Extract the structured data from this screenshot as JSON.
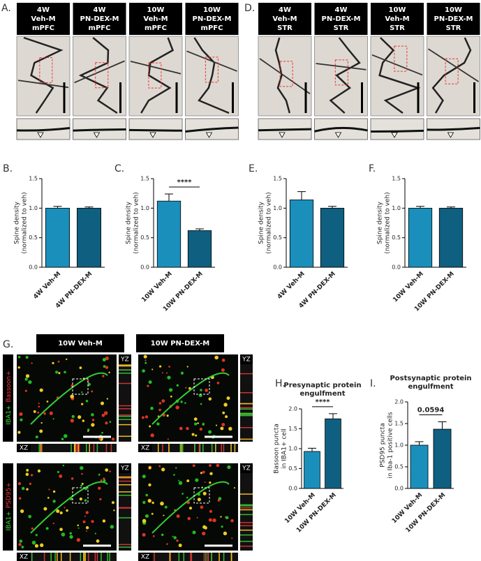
{
  "figure": {
    "panel_a": {
      "label": "A.",
      "headers": [
        [
          "4W",
          "Veh-M",
          "mPFC"
        ],
        [
          "4W",
          "PN-DEX-M",
          "mPFC"
        ],
        [
          "10W",
          "Veh-M",
          "mPFC"
        ],
        [
          "10W",
          "PN-DEX-M",
          "mPFC"
        ]
      ]
    },
    "panel_d": {
      "label": "D.",
      "headers": [
        [
          "4W",
          "Veh-M",
          "STR"
        ],
        [
          "4W",
          "PN-DEX-M",
          "STR"
        ],
        [
          "10W",
          "Veh-M",
          "STR"
        ],
        [
          "10W",
          "PN-DEX-M",
          "STR"
        ]
      ]
    },
    "panel_g": {
      "label": "G.",
      "headers": [
        "10W Veh-M",
        "10W PN-DEX-M"
      ],
      "rows": [
        [
          "IBA1+",
          "Bassoon+"
        ],
        [
          "IBA1+",
          "PSD95+"
        ]
      ],
      "yz": "YZ",
      "xz": "XZ"
    }
  },
  "chart_data": [
    {
      "type": "bar",
      "panel_label": "B.",
      "y_label": [
        "Spine density",
        "(normalized to veh)"
      ],
      "categories": [
        "4W Veh-M",
        "4W PN-DEX-M"
      ],
      "values": [
        1.0,
        1.0
      ],
      "errors": [
        0.03,
        0.02
      ],
      "colors": [
        "#1b8fbb",
        "#0f5f80"
      ],
      "ylim": [
        0,
        1.5
      ],
      "yticks": [
        {
          "value": 0,
          "label": "0.0"
        },
        0.5,
        {
          "value": 1,
          "label": "1.0"
        },
        1.5
      ]
    },
    {
      "type": "bar",
      "panel_label": "C.",
      "y_label": [
        "Spine density",
        "(normalized to veh)"
      ],
      "categories": [
        "10W Veh-M",
        "10W PN-DEX-M"
      ],
      "values": [
        1.12,
        0.62
      ],
      "errors": [
        0.12,
        0.03
      ],
      "colors": [
        "#1b8fbb",
        "#0f5f80"
      ],
      "ylim": [
        0,
        1.5
      ],
      "yticks": [
        {
          "value": 0,
          "label": "0.0"
        },
        0.5,
        {
          "value": 1,
          "label": "1.0"
        },
        1.5
      ],
      "significance": "****"
    },
    {
      "type": "bar",
      "panel_label": "E.",
      "y_label": [
        "Spine density",
        "(normalized to veh)"
      ],
      "categories": [
        "4W Veh-M",
        "4W PN-DEX-M"
      ],
      "values": [
        1.14,
        1.0
      ],
      "errors": [
        0.14,
        0.03
      ],
      "colors": [
        "#1b8fbb",
        "#0f5f80"
      ],
      "ylim": [
        0,
        1.5
      ],
      "yticks": [
        {
          "value": 0,
          "label": "0.0"
        },
        0.5,
        {
          "value": 1,
          "label": "1.0"
        },
        1.5
      ]
    },
    {
      "type": "bar",
      "panel_label": "F.",
      "y_label": [
        "Spine density",
        "(normalized to veh)"
      ],
      "categories": [
        "10W Veh-M",
        "10W PN-DEX-M"
      ],
      "values": [
        1.0,
        1.0
      ],
      "errors": [
        0.03,
        0.02
      ],
      "colors": [
        "#1b8fbb",
        "#0f5f80"
      ],
      "ylim": [
        0,
        1.5
      ],
      "yticks": [
        {
          "value": 0,
          "label": "0.0"
        },
        0.5,
        {
          "value": 1,
          "label": "1.0"
        },
        1.5
      ]
    },
    {
      "type": "bar",
      "panel_label": "H.",
      "title": [
        "Presynaptic protein",
        "engulfment"
      ],
      "y_label": [
        "Bassoon puncta",
        "in IBA1+ cell"
      ],
      "categories": [
        "10W Veh-M",
        "10W PN-DEX-M"
      ],
      "values": [
        0.93,
        1.75
      ],
      "errors": [
        0.08,
        0.13
      ],
      "colors": [
        "#1b8fbb",
        "#0f5f80"
      ],
      "ylim": [
        0,
        2
      ],
      "yticks": [
        {
          "value": 0,
          "label": "0.0"
        },
        0.5,
        {
          "value": 1,
          "label": "1.0"
        },
        1.5,
        {
          "value": 2,
          "label": "2.0"
        }
      ],
      "significance": "****"
    },
    {
      "type": "bar",
      "panel_label": "I.",
      "title": [
        "Postsynaptic protein",
        "engulfment"
      ],
      "y_label": [
        "PSD95 puncta",
        "in Iba-1 positive cells"
      ],
      "categories": [
        "10W Veh-M",
        "10W PN-DEX-M"
      ],
      "values": [
        1.0,
        1.37
      ],
      "errors": [
        0.08,
        0.17
      ],
      "colors": [
        "#1b8fbb",
        "#0f5f80"
      ],
      "ylim": [
        0,
        2
      ],
      "yticks": [
        {
          "value": 0,
          "label": "0.0"
        },
        0.5,
        {
          "value": 1,
          "label": "1.0"
        },
        1.5,
        {
          "value": 2,
          "label": "2.0"
        }
      ],
      "significance": "0.0594"
    }
  ]
}
